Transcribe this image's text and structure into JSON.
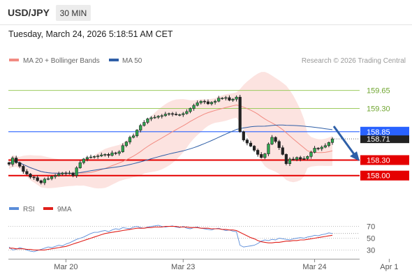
{
  "header": {
    "symbol": "USD/JPY",
    "timeframe": "30 MIN",
    "timestamp": "Tuesday, March 24, 2026 5:18:51 AM CET"
  },
  "legend": {
    "items": [
      {
        "label": "MA 20 + Bollinger Bands",
        "color": "#f28b82"
      },
      {
        "label": "MA 50",
        "color": "#2f5fa7"
      }
    ],
    "copyright": "Research © 2026 Trading Central"
  },
  "rsi_legend": {
    "items": [
      {
        "label": "RSI",
        "color": "#5b8dd9"
      },
      {
        "label": "9MA",
        "color": "#e0201b"
      }
    ]
  },
  "chart_data": [
    {
      "type": "candlestick",
      "x_ticks": [
        "Mar 20",
        "Mar 23",
        "Mar 24",
        "Apr 1"
      ],
      "ylim": [
        157.55,
        160.05
      ],
      "close": [
        158.22,
        158.34,
        158.25,
        158.18,
        158.08,
        158.03,
        157.97,
        157.96,
        157.9,
        157.86,
        157.93,
        157.94,
        157.98,
        158.0,
        158.03,
        158.05,
        158.04,
        158.05,
        158.0,
        158.15,
        158.25,
        158.32,
        158.35,
        158.36,
        158.37,
        158.38,
        158.4,
        158.41,
        158.39,
        158.44,
        158.43,
        158.46,
        158.58,
        158.65,
        158.74,
        158.77,
        158.88,
        158.97,
        159.03,
        159.1,
        159.12,
        159.13,
        159.15,
        159.16,
        159.19,
        159.2,
        159.19,
        159.18,
        159.18,
        159.2,
        159.24,
        159.3,
        159.36,
        159.41,
        159.44,
        159.43,
        159.39,
        159.42,
        159.44,
        159.5,
        159.5,
        159.51,
        159.46,
        159.48,
        159.52,
        158.85,
        158.69,
        158.63,
        158.57,
        158.49,
        158.41,
        158.35,
        158.42,
        158.61,
        158.74,
        158.66,
        158.54,
        158.41,
        158.23,
        158.32,
        158.31,
        158.35,
        158.32,
        158.33,
        158.37,
        158.45,
        158.53,
        158.52,
        158.55,
        158.58,
        158.64,
        158.71
      ],
      "levels": [
        {
          "value": "159.65",
          "color": "#9ccb5e",
          "kind": "resistance"
        },
        {
          "value": "159.30",
          "color": "#9ccb5e",
          "kind": "resistance"
        },
        {
          "value": "158.85",
          "color": "#2962ff",
          "kind": "pivot"
        },
        {
          "value": "158.71",
          "color": "#333333",
          "kind": "last"
        },
        {
          "value": "158.30",
          "color": "#e50000",
          "kind": "support"
        },
        {
          "value": "158.00",
          "color": "#e50000",
          "kind": "support"
        }
      ],
      "overlays": [
        "MA 20",
        "Bollinger Bands",
        "MA 50"
      ]
    },
    {
      "type": "line",
      "ylim": [
        15,
        85
      ],
      "y_ticks": [
        "70",
        "50",
        "30"
      ],
      "series": [
        {
          "name": "RSI",
          "color": "#5b8dd9",
          "values": [
            35,
            30,
            31,
            34,
            32,
            30,
            28,
            27,
            29,
            31,
            33,
            35,
            34,
            36,
            38,
            37,
            40,
            42,
            45,
            48,
            50,
            52,
            55,
            58,
            60,
            60,
            62,
            63,
            61,
            64,
            66,
            65,
            68,
            67,
            66,
            69,
            70,
            68,
            67,
            69,
            70,
            71,
            72,
            70,
            69,
            70,
            71,
            69,
            68,
            70,
            67,
            66,
            68,
            69,
            67,
            66,
            65,
            64,
            66,
            67,
            65,
            63,
            64,
            62,
            61,
            38,
            35,
            36,
            37,
            38,
            41,
            45,
            47,
            46,
            48,
            47,
            50,
            49,
            48,
            47,
            49,
            50,
            51,
            50,
            52,
            53,
            55,
            54,
            56,
            57,
            59,
            58
          ]
        },
        {
          "name": "9MA",
          "color": "#e0201b",
          "values": [
            33,
            33,
            32,
            32,
            32,
            31,
            31,
            30,
            30,
            30,
            30,
            31,
            32,
            33,
            34,
            35,
            36,
            38,
            40,
            42,
            44,
            46,
            48,
            50,
            52,
            54,
            56,
            58,
            59,
            60,
            61,
            62,
            63,
            64,
            65,
            66,
            67,
            67,
            67,
            68,
            68,
            69,
            69,
            69,
            70,
            70,
            70,
            70,
            69,
            69,
            69,
            68,
            68,
            68,
            67,
            67,
            67,
            66,
            66,
            66,
            65,
            65,
            64,
            64,
            63,
            60,
            57,
            54,
            51,
            49,
            46,
            44,
            43,
            42,
            42,
            43,
            43,
            44,
            45,
            45,
            46,
            46,
            47,
            47,
            48,
            49,
            50,
            51,
            52,
            53,
            54,
            55
          ]
        }
      ]
    }
  ]
}
